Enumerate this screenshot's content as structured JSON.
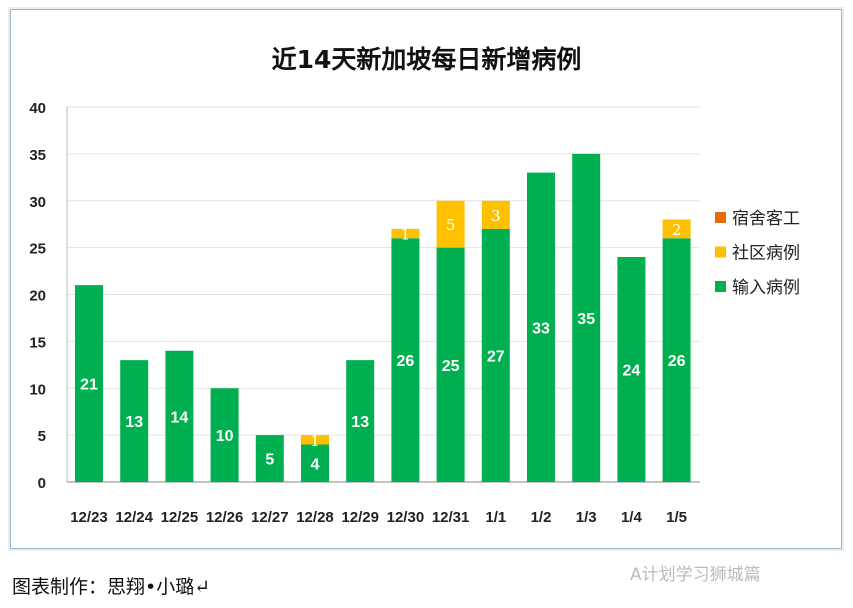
{
  "chart_data": {
    "type": "bar",
    "stacked": true,
    "title": "近14天新加坡每日新增病例",
    "categories": [
      "12/23",
      "12/24",
      "12/25",
      "12/26",
      "12/27",
      "12/28",
      "12/29",
      "12/30",
      "12/31",
      "1/1",
      "1/2",
      "1/3",
      "1/4",
      "1/5"
    ],
    "series": [
      {
        "name": "输入病例",
        "color": "#00b050",
        "values": [
          21,
          13,
          14,
          10,
          5,
          4,
          13,
          26,
          25,
          27,
          33,
          35,
          24,
          26
        ]
      },
      {
        "name": "社区病例",
        "color": "#ffc000",
        "values": [
          0,
          0,
          0,
          0,
          0,
          1,
          0,
          1,
          5,
          3,
          0,
          0,
          0,
          2
        ]
      },
      {
        "name": "宿舍客工",
        "color": "#e46c0a",
        "values": [
          0,
          0,
          0,
          0,
          0,
          0,
          0,
          0,
          0,
          0,
          0,
          0,
          0,
          0
        ]
      }
    ],
    "ylim": [
      0,
      40
    ],
    "yticks": [
      0,
      5,
      10,
      15,
      20,
      25,
      30,
      35,
      40
    ],
    "grid": true,
    "legend": "right"
  },
  "credit": "图表制作：思翔•小璐↵",
  "watermark": "A计划学习狮城篇"
}
